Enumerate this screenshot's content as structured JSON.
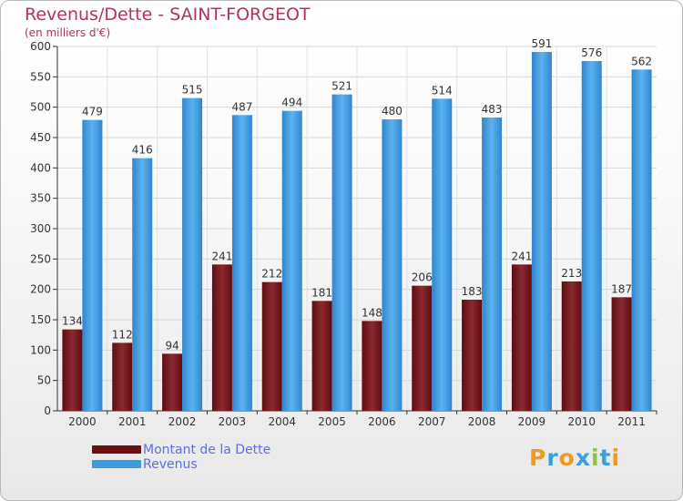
{
  "title": "Revenus/Dette - SAINT-FORGEOT",
  "subtitle": "(en milliers d'€)",
  "colors": {
    "dette": "#7a1c22",
    "revenus": "#4aa3e6",
    "title": "#b5305c",
    "legend_text": "#5b6ee6"
  },
  "legend": [
    {
      "label": "Montant de la Dette",
      "color": "#6b0f14"
    },
    {
      "label": "Revenus",
      "color": "#3e9be0"
    }
  ],
  "logo": {
    "letters": [
      "P",
      "r",
      "o",
      "x",
      "i",
      "t",
      "i"
    ],
    "colors": [
      "#f29a1c",
      "#3aa0d8",
      "#f29a1c",
      "#3aa0d8",
      "#8cc63f",
      "#3aa0d8",
      "#f29a1c"
    ]
  },
  "chart_data": {
    "type": "bar",
    "categories": [
      "2000",
      "2001",
      "2002",
      "2003",
      "2004",
      "2005",
      "2006",
      "2007",
      "2008",
      "2009",
      "2010",
      "2011"
    ],
    "series": [
      {
        "name": "Montant de la Dette",
        "values": [
          134,
          112,
          94,
          241,
          212,
          181,
          148,
          206,
          183,
          241,
          213,
          187
        ]
      },
      {
        "name": "Revenus",
        "values": [
          479,
          416,
          515,
          487,
          494,
          521,
          480,
          514,
          483,
          591,
          576,
          562
        ]
      }
    ],
    "yticks": [
      0,
      50,
      100,
      150,
      200,
      250,
      300,
      350,
      400,
      450,
      500,
      550,
      600
    ],
    "ylim": [
      0,
      600
    ],
    "grid": true,
    "legend_position": "bottom-left"
  }
}
